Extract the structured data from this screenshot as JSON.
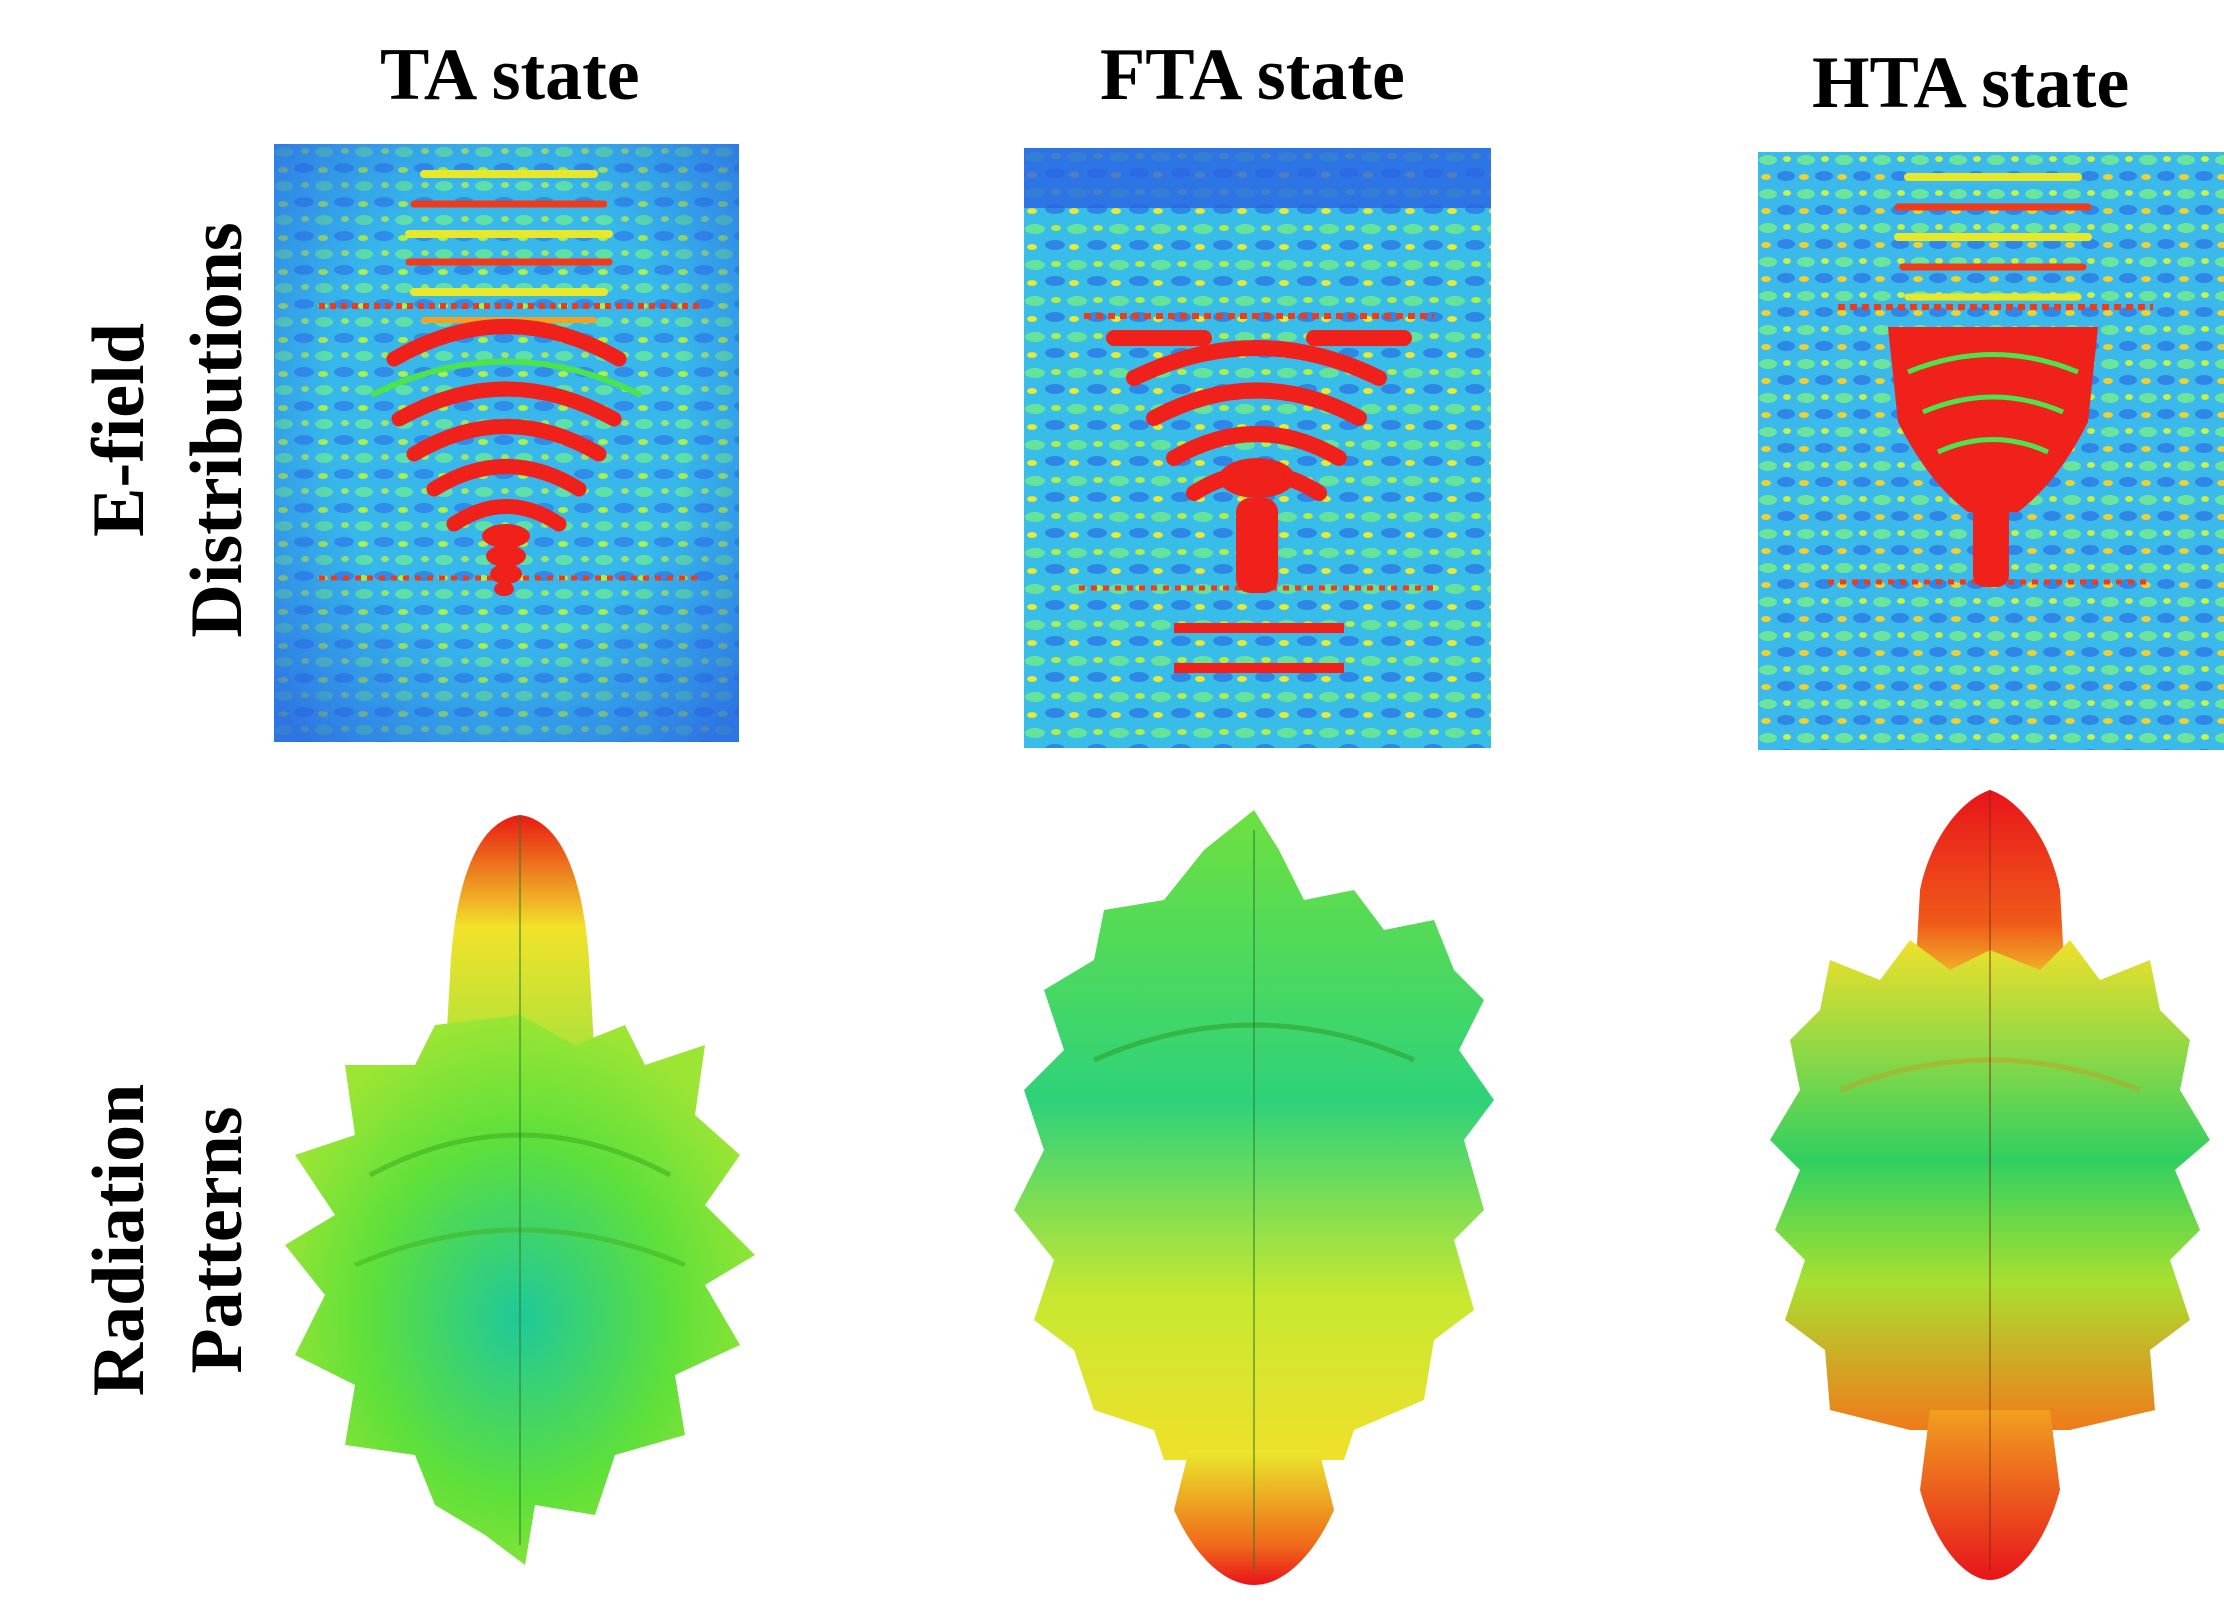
{
  "columns": [
    {
      "title": "TA state"
    },
    {
      "title": "FTA state"
    },
    {
      "title": "HTA state"
    }
  ],
  "rows": [
    {
      "line1": "E-field",
      "line2": "Distributions"
    },
    {
      "line1": "Radiation",
      "line2": "Patterns"
    }
  ],
  "colors": {
    "background_field": "#2a73e6",
    "field_cyan": "#38c8e8",
    "field_green": "#4de34d",
    "field_yellow": "#e6e628",
    "field_red": "#f0201a"
  }
}
